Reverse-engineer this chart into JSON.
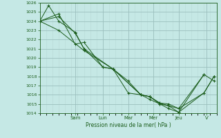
{
  "xlabel": "Pression niveau de la mer( hPa )",
  "ylim": [
    1014,
    1026
  ],
  "xlim": [
    0,
    14.0
  ],
  "yticks": [
    1014,
    1015,
    1016,
    1017,
    1018,
    1019,
    1020,
    1021,
    1022,
    1023,
    1024,
    1025,
    1026
  ],
  "day_labels": [
    "Sam",
    "Lun",
    "Mar",
    "Mer",
    "Jeu",
    "V"
  ],
  "day_positions": [
    2.8,
    5.0,
    7.0,
    9.0,
    11.0,
    13.2
  ],
  "background_color": "#c5e8e5",
  "grid_major_color": "#9bbfbd",
  "grid_minor_color": "#b8d8d6",
  "line_color": "#1a5c1a",
  "series": [
    {
      "x": [
        0.0,
        0.7,
        1.5,
        2.8,
        3.5,
        5.0,
        5.8,
        7.0,
        8.0,
        8.7,
        9.5,
        10.2,
        11.0,
        13.0,
        13.8
      ],
      "y": [
        1024.0,
        1025.7,
        1024.0,
        1022.8,
        1021.0,
        1019.0,
        1018.8,
        1017.5,
        1016.0,
        1015.8,
        1015.1,
        1014.8,
        1014.5,
        1018.2,
        1017.5
      ]
    },
    {
      "x": [
        0.0,
        1.5,
        2.8,
        3.5,
        5.0,
        5.8,
        7.0,
        8.0,
        8.7,
        9.5,
        10.2,
        11.0,
        13.0,
        13.8
      ],
      "y": [
        1024.0,
        1024.8,
        1021.5,
        1021.7,
        1019.0,
        1018.8,
        1016.2,
        1016.0,
        1015.8,
        1015.1,
        1015.0,
        1014.5,
        1016.2,
        1018.0
      ]
    },
    {
      "x": [
        0.0,
        1.5,
        2.8,
        3.5,
        5.8,
        8.0,
        8.7,
        9.5,
        10.2,
        11.0,
        13.0
      ],
      "y": [
        1024.0,
        1024.5,
        1022.7,
        1021.0,
        1018.8,
        1016.0,
        1015.8,
        1015.0,
        1014.8,
        1014.1,
        1018.2
      ]
    },
    {
      "x": [
        0.0,
        1.5,
        3.5,
        5.8,
        8.0,
        8.7,
        9.5,
        10.2,
        11.0,
        13.0,
        13.8
      ],
      "y": [
        1024.0,
        1023.0,
        1020.8,
        1018.8,
        1016.0,
        1015.5,
        1015.0,
        1014.5,
        1014.1,
        1016.2,
        1018.0
      ]
    }
  ]
}
